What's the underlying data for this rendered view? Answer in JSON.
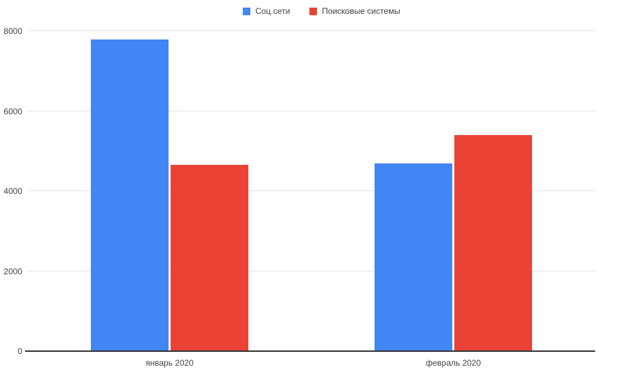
{
  "chart_data": {
    "type": "bar",
    "title": "",
    "xlabel": "",
    "ylabel": "",
    "categories": [
      "январь 2020",
      "февраль 2020"
    ],
    "series": [
      {
        "name": "Соц.сети",
        "color": "#4285f4",
        "values": [
          7800,
          4700
        ]
      },
      {
        "name": "Поисковые системы",
        "color": "#ea4335",
        "values": [
          4650,
          5400
        ]
      }
    ],
    "ylim": [
      0,
      8000
    ],
    "yticks": [
      0,
      2000,
      4000,
      6000,
      8000
    ],
    "grid": true,
    "legend_position": "top"
  },
  "colors": {
    "background": "#ffffff",
    "gridline": "#e3e3e3",
    "axis_line": "#333333",
    "axis_label": "#444444",
    "legend_label": "#3c4043"
  }
}
